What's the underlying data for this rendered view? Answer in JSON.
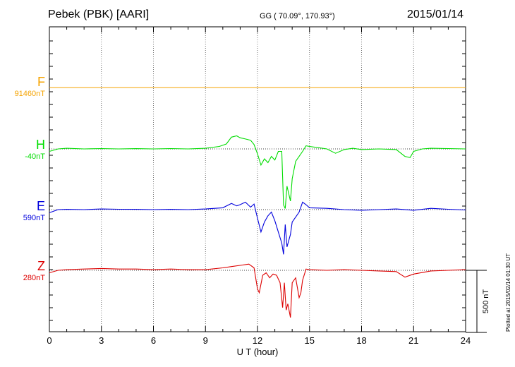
{
  "header": {
    "station": "Pebek (PBK)  [AARI]",
    "coords": "GG ( 70.09°, 170.93°)",
    "date": "2015/01/14"
  },
  "footer": {
    "plotted": "Plotted at 2015/02/14 01:30 UT"
  },
  "chart_data": {
    "type": "line",
    "title": "Pebek (PBK)  [AARI]",
    "xlabel": "U T (hour)",
    "xlim": [
      0,
      24
    ],
    "xticks": [
      "0",
      "3",
      "6",
      "9",
      "12",
      "15",
      "18",
      "21",
      "24"
    ],
    "grid": true,
    "scale_bar": "500 nT",
    "series": [
      {
        "name": "F",
        "baseline": "91460nT",
        "color": "#f5a300",
        "points": [
          [
            0,
            0
          ],
          [
            2,
            0
          ],
          [
            4,
            0
          ],
          [
            6,
            0
          ],
          [
            8,
            0
          ],
          [
            10,
            0
          ],
          [
            12,
            0
          ],
          [
            14,
            0
          ],
          [
            16,
            0
          ],
          [
            18,
            0
          ],
          [
            20,
            0
          ],
          [
            22,
            0
          ],
          [
            24,
            0
          ]
        ]
      },
      {
        "name": "H",
        "baseline": "-40nT",
        "color": "#00dd00",
        "points": [
          [
            0,
            -20
          ],
          [
            0.5,
            0
          ],
          [
            1,
            5
          ],
          [
            2,
            0
          ],
          [
            3,
            3
          ],
          [
            4,
            0
          ],
          [
            5,
            2
          ],
          [
            6,
            0
          ],
          [
            7,
            3
          ],
          [
            8,
            0
          ],
          [
            9,
            5
          ],
          [
            9.8,
            20
          ],
          [
            10.2,
            40
          ],
          [
            10.5,
            95
          ],
          [
            10.8,
            105
          ],
          [
            11,
            90
          ],
          [
            11.3,
            80
          ],
          [
            11.6,
            70
          ],
          [
            11.8,
            35
          ],
          [
            12,
            -40
          ],
          [
            12.2,
            -130
          ],
          [
            12.4,
            -80
          ],
          [
            12.6,
            -110
          ],
          [
            12.8,
            -60
          ],
          [
            13,
            -90
          ],
          [
            13.2,
            -20
          ],
          [
            13.4,
            -20
          ],
          [
            13.5,
            -450
          ],
          [
            13.6,
            -480
          ],
          [
            13.7,
            -300
          ],
          [
            13.9,
            -420
          ],
          [
            14,
            -240
          ],
          [
            14.2,
            -100
          ],
          [
            14.4,
            -60
          ],
          [
            14.6,
            -20
          ],
          [
            14.8,
            25
          ],
          [
            15,
            20
          ],
          [
            15.5,
            10
          ],
          [
            16,
            0
          ],
          [
            16.5,
            -35
          ],
          [
            17,
            -5
          ],
          [
            17.5,
            5
          ],
          [
            18,
            -5
          ],
          [
            19,
            0
          ],
          [
            20,
            -5
          ],
          [
            20.5,
            -60
          ],
          [
            20.8,
            -70
          ],
          [
            21,
            -20
          ],
          [
            21.5,
            0
          ],
          [
            22,
            5
          ],
          [
            23,
            3
          ],
          [
            24,
            0
          ]
        ]
      },
      {
        "name": "E",
        "baseline": "590nT",
        "color": "#0000dd",
        "points": [
          [
            0,
            -25
          ],
          [
            0.5,
            0
          ],
          [
            1,
            2
          ],
          [
            2,
            0
          ],
          [
            3,
            5
          ],
          [
            4,
            3
          ],
          [
            5,
            2
          ],
          [
            6,
            0
          ],
          [
            7,
            2
          ],
          [
            8,
            0
          ],
          [
            9,
            5
          ],
          [
            10,
            15
          ],
          [
            10.5,
            50
          ],
          [
            10.8,
            30
          ],
          [
            11,
            40
          ],
          [
            11.3,
            60
          ],
          [
            11.6,
            20
          ],
          [
            11.8,
            45
          ],
          [
            12,
            -70
          ],
          [
            12.2,
            -180
          ],
          [
            12.4,
            -100
          ],
          [
            12.6,
            -50
          ],
          [
            12.8,
            -20
          ],
          [
            13,
            -90
          ],
          [
            13.2,
            -180
          ],
          [
            13.4,
            -270
          ],
          [
            13.5,
            -360
          ],
          [
            13.6,
            -120
          ],
          [
            13.7,
            -300
          ],
          [
            13.9,
            -200
          ],
          [
            14,
            -100
          ],
          [
            14.2,
            -60
          ],
          [
            14.4,
            -20
          ],
          [
            14.6,
            60
          ],
          [
            14.8,
            40
          ],
          [
            15,
            15
          ],
          [
            16,
            10
          ],
          [
            17,
            0
          ],
          [
            18,
            -5
          ],
          [
            19,
            0
          ],
          [
            20,
            5
          ],
          [
            21,
            -5
          ],
          [
            22,
            10
          ],
          [
            23,
            3
          ],
          [
            24,
            -3
          ]
        ]
      },
      {
        "name": "Z",
        "baseline": "280nT",
        "color": "#dd0000",
        "points": [
          [
            0,
            -20
          ],
          [
            0.5,
            0
          ],
          [
            1,
            5
          ],
          [
            2,
            10
          ],
          [
            3,
            15
          ],
          [
            4,
            10
          ],
          [
            5,
            10
          ],
          [
            6,
            5
          ],
          [
            7,
            10
          ],
          [
            8,
            5
          ],
          [
            9,
            5
          ],
          [
            10,
            20
          ],
          [
            10.5,
            30
          ],
          [
            11,
            40
          ],
          [
            11.5,
            50
          ],
          [
            11.8,
            20
          ],
          [
            12,
            -150
          ],
          [
            12.1,
            -180
          ],
          [
            12.3,
            -40
          ],
          [
            12.5,
            -20
          ],
          [
            12.7,
            -60
          ],
          [
            12.9,
            -30
          ],
          [
            13.1,
            -40
          ],
          [
            13.3,
            -100
          ],
          [
            13.45,
            -300
          ],
          [
            13.55,
            -100
          ],
          [
            13.65,
            -320
          ],
          [
            13.75,
            -270
          ],
          [
            13.9,
            -380
          ],
          [
            14,
            -100
          ],
          [
            14.2,
            -60
          ],
          [
            14.4,
            -220
          ],
          [
            14.5,
            -180
          ],
          [
            14.6,
            -80
          ],
          [
            14.8,
            10
          ],
          [
            15,
            5
          ],
          [
            16,
            0
          ],
          [
            17,
            5
          ],
          [
            18,
            0
          ],
          [
            19,
            -5
          ],
          [
            20,
            -10
          ],
          [
            20.5,
            -55
          ],
          [
            21,
            -30
          ],
          [
            22,
            -5
          ],
          [
            23,
            0
          ],
          [
            24,
            5
          ]
        ]
      }
    ]
  }
}
